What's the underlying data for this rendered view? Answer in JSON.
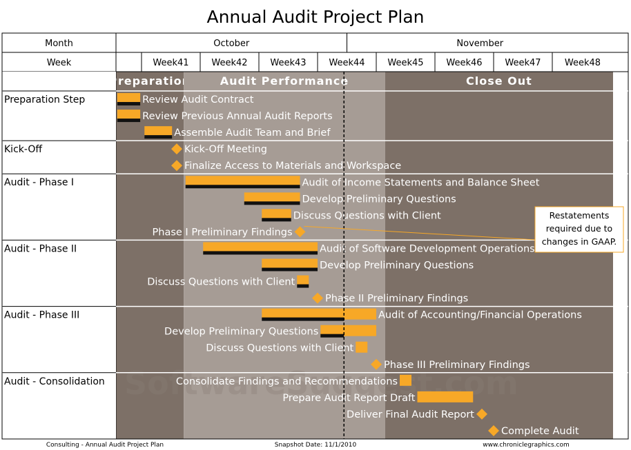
{
  "colors": {
    "bar": "#f7a827",
    "bar_shadow": "#111111",
    "milestone": "#f7a827",
    "zone_dark": "#7d7067",
    "zone_light": "#a69c95",
    "zone_header_dark": "#6f635b",
    "zone_header_light": "#9e948d",
    "grid": "#000000",
    "watermark": "#8b7f77"
  },
  "icons": {
    "milestone": "diamond-icon"
  },
  "chart_data": {
    "type": "gantt",
    "title": "Annual Audit Project Plan",
    "row_labels": {
      "month": "Month",
      "week": "Week"
    },
    "months": [
      {
        "label": "October",
        "start_week": 0,
        "span": 4.5
      },
      {
        "label": "November",
        "start_week": 4.5,
        "span": 4.5
      }
    ],
    "weeks": [
      "",
      "Week41",
      "Week42",
      "Week43",
      "Week44",
      "Week45",
      "Week46",
      "Week47",
      "Week48"
    ],
    "phases": [
      {
        "label": "Preparation",
        "start": 0,
        "end": 1.72,
        "shade": "dark"
      },
      {
        "label": "Audit Performance",
        "start": 1.72,
        "end": 5.15,
        "shade": "light"
      },
      {
        "label": "Close Out",
        "start": 5.15,
        "end": 9,
        "shade": "dark"
      }
    ],
    "snapshot_week": 4.45,
    "groups": [
      {
        "label": "Preparation Step",
        "tasks": [
          {
            "label": "Review Audit Contract",
            "type": "bar",
            "start": 0.05,
            "end": 0.95,
            "done_end": 0.95,
            "label_side": "right"
          },
          {
            "label": "Review Previous Annual Audit Reports",
            "type": "bar",
            "start": 0.05,
            "end": 0.95,
            "done_end": 0.95,
            "label_side": "right"
          },
          {
            "label": "Assemble Audit Team and Brief",
            "type": "bar",
            "start": 1.05,
            "end": 1.52,
            "done_end": 1.52,
            "label_side": "right"
          }
        ]
      },
      {
        "label": "Kick-Off",
        "tasks": [
          {
            "label": "Kick-Off Meeting",
            "type": "milestone",
            "start": 1.6,
            "label_side": "right"
          },
          {
            "label": "Finalize Access to Materials and Workspace",
            "type": "milestone",
            "start": 1.6,
            "label_side": "right"
          }
        ]
      },
      {
        "label": "Audit -  Phase I",
        "tasks": [
          {
            "label": "Audit of Income Statements and Balance Sheet",
            "type": "bar",
            "start": 1.75,
            "end": 3.7,
            "done_end": 3.7,
            "label_side": "right"
          },
          {
            "label": "Develop Preliminary Questions",
            "type": "bar",
            "start": 2.75,
            "end": 3.7,
            "done_end": 3.7,
            "label_side": "right"
          },
          {
            "label": "Discuss Questions with Client",
            "type": "bar",
            "start": 3.05,
            "end": 3.55,
            "done_end": 3.55,
            "label_side": "right"
          },
          {
            "label": "Phase I Preliminary Findings",
            "type": "milestone",
            "start": 3.7,
            "label_side": "left"
          }
        ]
      },
      {
        "label": "Audit - Phase II",
        "tasks": [
          {
            "label": "Audit of Software Development Operations",
            "type": "bar",
            "start": 2.05,
            "end": 4.0,
            "done_end": 4.0,
            "label_side": "right"
          },
          {
            "label": "Develop Preliminary Questions",
            "type": "bar",
            "start": 3.05,
            "end": 4.0,
            "done_end": 4.0,
            "label_side": "right"
          },
          {
            "label": "Discuss Questions with Client",
            "type": "bar",
            "start": 3.65,
            "end": 3.85,
            "done_end": 3.85,
            "label_side": "left"
          },
          {
            "label": "Phase II Preliminary Findings",
            "type": "milestone",
            "start": 4.0,
            "label_side": "right"
          }
        ]
      },
      {
        "label": "Audit - Phase III",
        "tasks": [
          {
            "label": "Audit of Accounting/Financial Operations",
            "type": "bar",
            "start": 3.05,
            "end": 5.0,
            "done_end": 4.45,
            "label_side": "right"
          },
          {
            "label": "Develop Preliminary Questions",
            "type": "bar",
            "start": 4.05,
            "end": 5.0,
            "done_end": 4.45,
            "label_side": "left"
          },
          {
            "label": "Discuss Questions with Client",
            "type": "bar",
            "start": 4.65,
            "end": 4.85,
            "done_end": 4.45,
            "label_side": "left"
          },
          {
            "label": "Phase III Preliminary Findings",
            "type": "milestone",
            "start": 5.0,
            "label_side": "right"
          }
        ]
      },
      {
        "label": "Audit - Consolidation",
        "tasks": [
          {
            "label": "Consolidate Findings and Recommendations",
            "type": "bar",
            "start": 5.4,
            "end": 5.6,
            "done_end": 4.45,
            "label_side": "left"
          },
          {
            "label": "Prepare Audit Report Draft",
            "type": "bar",
            "start": 5.7,
            "end": 6.65,
            "done_end": 4.45,
            "label_side": "left"
          },
          {
            "label": "Deliver Final Audit Report",
            "type": "milestone",
            "start": 6.8,
            "label_side": "left"
          },
          {
            "label": "Complete Audit",
            "type": "milestone",
            "start": 7.0,
            "label_side": "right"
          }
        ]
      }
    ],
    "annotation": {
      "lines": [
        "Restatements",
        "required due to",
        "changes in GAAP."
      ],
      "target_task": "Phase I Preliminary Findings"
    },
    "watermark": "SoftwareSuggest.com",
    "footer": {
      "left": "Consulting - Annual Audit Project Plan",
      "center": "Snapshot Date: 11/1/2010",
      "right": "www.chroniclegraphics.com"
    }
  }
}
